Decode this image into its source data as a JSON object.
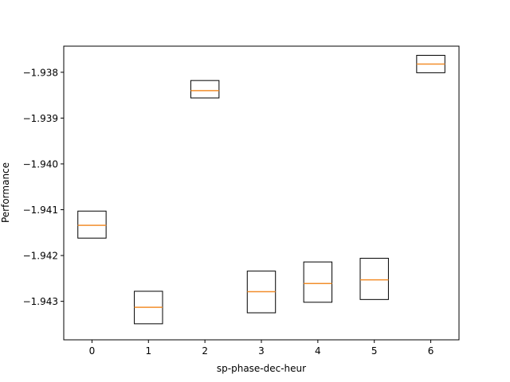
{
  "chart_data": {
    "type": "box",
    "xlabel": "sp-phase-dec-heur",
    "ylabel": "Performance",
    "categories": [
      "0",
      "1",
      "2",
      "3",
      "4",
      "5",
      "6"
    ],
    "xlim": [
      -0.5,
      6.5
    ],
    "ylim": [
      -1.94384,
      -1.93743
    ],
    "y_ticks": [
      -1.938,
      -1.939,
      -1.94,
      -1.941,
      -1.942,
      -1.943
    ],
    "y_tick_labels": [
      "−1.938",
      "−1.939",
      "−1.940",
      "−1.941",
      "−1.942",
      "−1.943"
    ],
    "boxes": [
      {
        "category": "0",
        "q1": -1.94162,
        "median": -1.94134,
        "q3": -1.94103
      },
      {
        "category": "1",
        "q1": -1.94349,
        "median": -1.94313,
        "q3": -1.94278
      },
      {
        "category": "2",
        "q1": -1.93856,
        "median": -1.9384,
        "q3": -1.93818
      },
      {
        "category": "3",
        "q1": -1.94325,
        "median": -1.94279,
        "q3": -1.94234
      },
      {
        "category": "4",
        "q1": -1.94302,
        "median": -1.94261,
        "q3": -1.94214
      },
      {
        "category": "5",
        "q1": -1.94296,
        "median": -1.94253,
        "q3": -1.94206
      },
      {
        "category": "6",
        "q1": -1.93801,
        "median": -1.93782,
        "q3": -1.93763
      }
    ],
    "grid": false,
    "colors": {
      "box": "#000000",
      "median": "#f28e2b",
      "axes": "#000000",
      "background": "#ffffff"
    }
  }
}
